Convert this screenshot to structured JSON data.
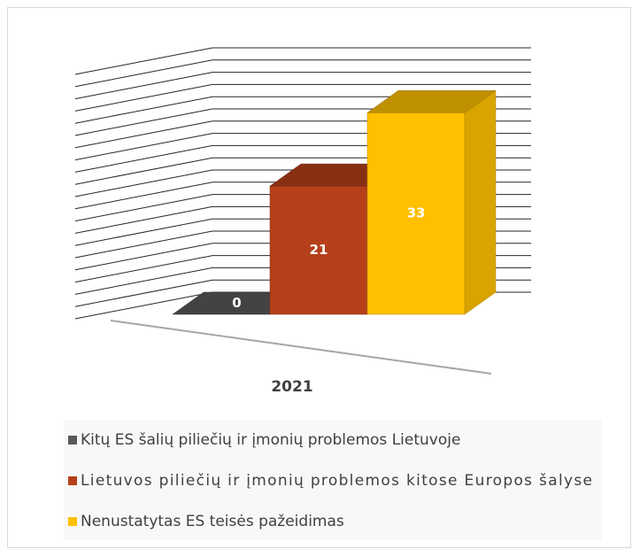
{
  "chart_data": {
    "type": "bar",
    "categories": [
      "2021"
    ],
    "series": [
      {
        "name": "Kitų ES šalių piliečių ir įmonių problemos Lietuvoje",
        "color": "#595959",
        "values": [
          0
        ]
      },
      {
        "name": "Lietuvos piliečių ir įmonių problemos kitose Europos šalyse",
        "color": "#b5401a",
        "values": [
          21
        ]
      },
      {
        "name": "Nenustatytas ES teisės pažeidimas",
        "color": "#ffc000",
        "values": [
          33
        ]
      }
    ],
    "ylim": [
      0,
      40
    ],
    "yticks": [
      0,
      2,
      4,
      6,
      8,
      10,
      12,
      14,
      16,
      18,
      20,
      22,
      24,
      26,
      28,
      30,
      32,
      34,
      36,
      38,
      40
    ],
    "grid": true,
    "legend": "bottom"
  }
}
